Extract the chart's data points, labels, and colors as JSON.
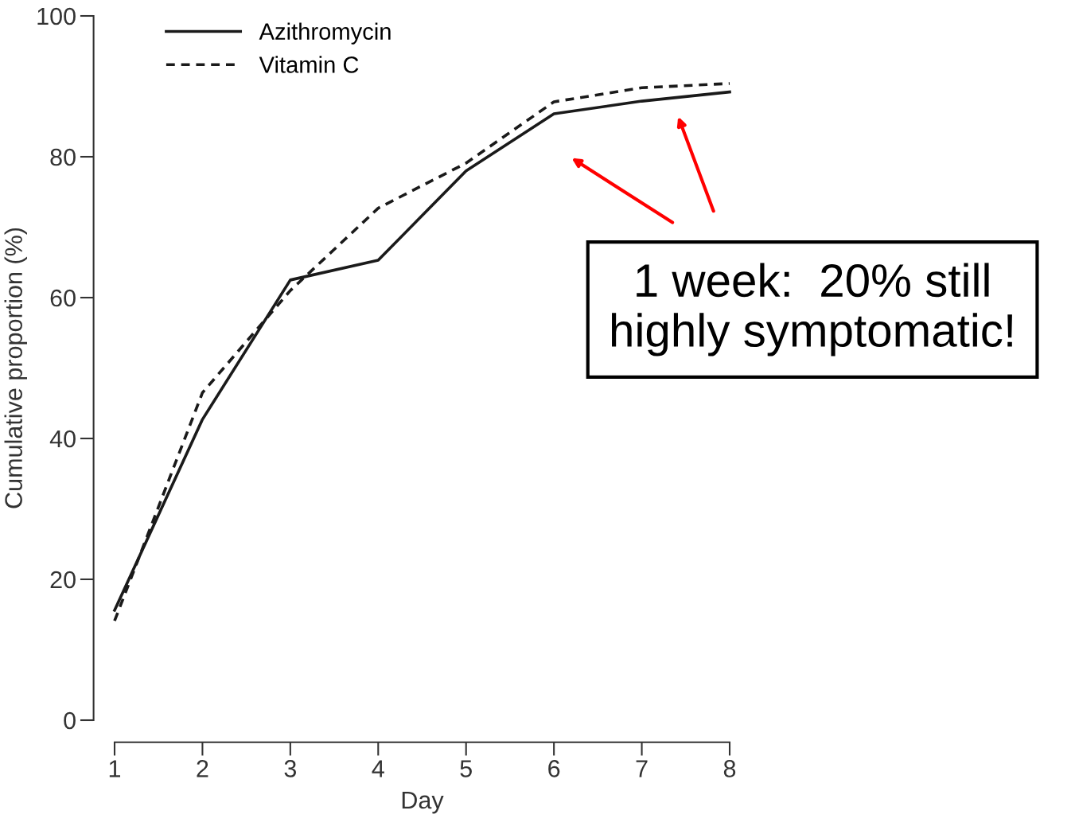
{
  "chart_data": {
    "type": "line",
    "xlabel": "Day",
    "ylabel": "Cumulative proportion (%)",
    "x": [
      1,
      2,
      3,
      4,
      5,
      6,
      7,
      8
    ],
    "series": [
      {
        "name": "Azithromycin",
        "color": "#1a1a1a",
        "line_style": "solid",
        "values": [
          15.6,
          42.7,
          62.5,
          65.3,
          78,
          86.1,
          87.9,
          89.2
        ]
      },
      {
        "name": "Vitamin C",
        "color": "#1a1a1a",
        "line_style": "dashed",
        "values": [
          14.1,
          46.5,
          61,
          72.7,
          79.1,
          87.8,
          89.8,
          90.4
        ]
      }
    ],
    "xlim": [
      1,
      8
    ],
    "xticks": [
      1,
      2,
      3,
      4,
      5,
      6,
      7,
      8
    ],
    "ylim": [
      0,
      100
    ],
    "yticks": [
      0,
      20,
      40,
      60,
      80,
      100
    ],
    "grid": false,
    "legend": "top left",
    "marker": "none",
    "annotations": [
      "1 week:  20% still highly symptomatic!"
    ]
  }
}
